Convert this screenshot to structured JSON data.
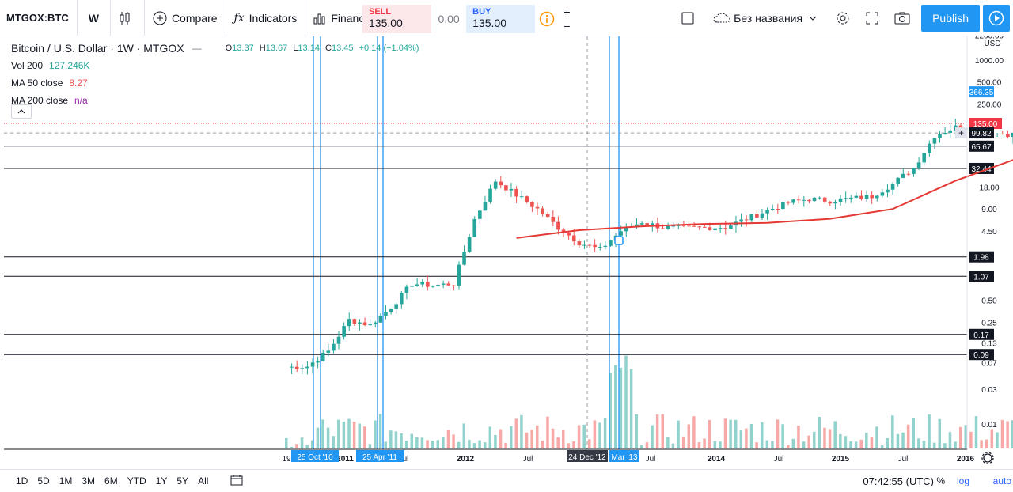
{
  "toolbar": {
    "symbol": "MTGOX:BTC",
    "interval": "W",
    "compare": "Compare",
    "indicators": "Indicators",
    "financials": "Financials",
    "sell_label": "SELL",
    "sell_price": "135.00",
    "spread": "0.00",
    "buy_label": "BUY",
    "buy_price": "135.00",
    "layout_name": "Без названия",
    "publish": "Publish"
  },
  "legend": {
    "title": "Bitcoin / U.S. Dollar · 1W · MTGOX",
    "open_label": "O",
    "open": "13.37",
    "high_label": "H",
    "high": "13.67",
    "low_label": "L",
    "low": "13.14",
    "close_label": "C",
    "close": "13.45",
    "change": "+0.14 (+1.04%)",
    "vol_label": "Vol 200",
    "vol_value": "127.246K",
    "ma50_label": "MA 50 close",
    "ma50_value": "8.27",
    "ma200_label": "MA 200 close",
    "ma200_value": "n/a"
  },
  "colors": {
    "up": "#26a69a",
    "down": "#ef5350",
    "ma": "#e53935",
    "vline": "#2196f3",
    "ma50_value": "#ef5350",
    "ma200_value": "#9c27b0",
    "price_label": "#f23645",
    "accent": "#2196f3"
  },
  "chart_data": {
    "type": "candlestick",
    "scale": "log",
    "y_unit": "USD",
    "y_ticks": [
      2200,
      1000,
      500,
      250,
      18,
      9,
      4.5,
      0.5,
      0.25,
      0.13,
      0.07,
      0.03,
      0.01
    ],
    "y_tick_labels": [
      "2200.00",
      "1000.00",
      "500.00",
      "250.00",
      "18.00",
      "9.00",
      "4.50",
      "0.50",
      "0.25",
      "0.13",
      "0.07",
      "0.03",
      "0.01"
    ],
    "x_tick_labels": [
      "19",
      "2011",
      "Jul",
      "2012",
      "Jul",
      "2013",
      "Jul",
      "2014",
      "Jul",
      "2015",
      "Jul",
      "2016"
    ],
    "current_price": "135.00",
    "crosshair_price": "99.82",
    "level_labels": [
      "366.35",
      "65.67",
      "32.44",
      "1.98",
      "1.07",
      "0.17",
      "0.09"
    ],
    "vertical_line_labels": [
      "25 Oct '10",
      "25 Apr '11",
      "Mar '13"
    ],
    "crosshair_date": "24 Dec '12",
    "price_path": [
      [
        "2010-08",
        0.06
      ],
      [
        "2010-09",
        0.062
      ],
      [
        "2010-10",
        0.1
      ],
      [
        "2010-11",
        0.27
      ],
      [
        "2010-12",
        0.23
      ],
      [
        "2011-01",
        0.4
      ],
      [
        "2011-02",
        0.85
      ],
      [
        "2011-03",
        0.8
      ],
      [
        "2011-04",
        0.85
      ],
      [
        "2011-05",
        6.5
      ],
      [
        "2011-06",
        22
      ],
      [
        "2011-07",
        14
      ],
      [
        "2011-08",
        9
      ],
      [
        "2011-09",
        5
      ],
      [
        "2011-10",
        3.1
      ],
      [
        "2011-11",
        2.5
      ],
      [
        "2011-12",
        4.5
      ],
      [
        "2012-01",
        6
      ],
      [
        "2012-02",
        5
      ],
      [
        "2012-03",
        4.9
      ],
      [
        "2012-04",
        5
      ],
      [
        "2012-05",
        5.1
      ],
      [
        "2012-06",
        6.6
      ],
      [
        "2012-07",
        8.6
      ],
      [
        "2012-08",
        11
      ],
      [
        "2012-09",
        12.4
      ],
      [
        "2012-10",
        11.7
      ],
      [
        "2012-11",
        12.5
      ],
      [
        "2012-12",
        13.5
      ],
      [
        "2013-01",
        20
      ],
      [
        "2013-02",
        33
      ],
      [
        "2013-03",
        92
      ],
      [
        "2013-04",
        120
      ],
      [
        "2013-05",
        125
      ],
      [
        "2013-06",
        98
      ],
      [
        "2013-07",
        95
      ],
      [
        "2013-08",
        125
      ],
      [
        "2013-09",
        135
      ],
      [
        "2013-10",
        200
      ],
      [
        "2013-11",
        1050
      ],
      [
        "2013-12",
        820
      ],
      [
        "2014-01",
        880
      ],
      [
        "2014-02",
        135
      ]
    ],
    "ma_path": [
      [
        "2011-07",
        3.6
      ],
      [
        "2011-10",
        4.6
      ],
      [
        "2012-01",
        5.2
      ],
      [
        "2012-04",
        5.6
      ],
      [
        "2012-07",
        5.8
      ],
      [
        "2012-10",
        6.6
      ],
      [
        "2013-01",
        9
      ],
      [
        "2013-04",
        22
      ],
      [
        "2013-07",
        45
      ],
      [
        "2013-10",
        75
      ],
      [
        "2013-12",
        220
      ],
      [
        "2014-01",
        340
      ],
      [
        "2014-02",
        366.35
      ]
    ]
  },
  "bottom": {
    "ranges": [
      "1D",
      "5D",
      "1M",
      "3M",
      "6M",
      "YTD",
      "1Y",
      "5Y",
      "All"
    ],
    "time": "07:42:55 (UTC)",
    "percent": "%",
    "log": "log",
    "auto": "auto"
  }
}
